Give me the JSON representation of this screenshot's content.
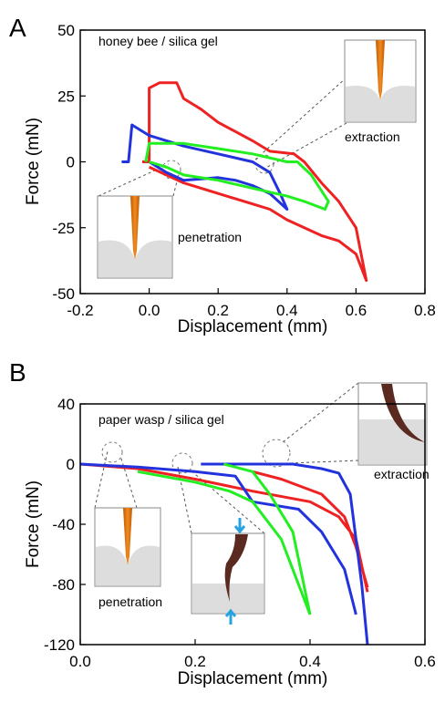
{
  "chart_data": [
    {
      "type": "line",
      "panel_label": "A",
      "title": "honey bee / silica gel",
      "x_label": "Displacement (mm)",
      "y_label": "Force (mN)",
      "annotations": [
        "penetration",
        "extraction"
      ],
      "xlim": [
        -0.2,
        0.8
      ],
      "ylim": [
        -50,
        50
      ],
      "xticks": [
        -0.2,
        {
          "value": 0,
          "label": "0.0"
        },
        0.2,
        0.4,
        0.6,
        0.8
      ],
      "yticks": [
        50,
        25,
        0,
        -25,
        -50
      ],
      "series": [
        {
          "color": "#ee2222",
          "x": [
            -0.02,
            0.0,
            0.0,
            0.03,
            0.08,
            0.1,
            0.15,
            0.2,
            0.3,
            0.35,
            0.42,
            0.45,
            0.5,
            0.55,
            0.6,
            0.63,
            0.6,
            0.55,
            0.5,
            0.45,
            0.4,
            0.35,
            0.3,
            0.2,
            0.1,
            0.05,
            0.0
          ],
          "values": [
            0,
            0,
            28,
            30,
            30,
            24,
            20,
            15,
            8,
            4,
            3,
            0,
            -8,
            -15,
            -25,
            -45,
            -35,
            -30,
            -28,
            -25,
            -22,
            -18,
            -16,
            -12,
            -8,
            -5,
            -2
          ]
        },
        {
          "color": "#2233dd",
          "x": [
            -0.08,
            -0.06,
            -0.05,
            0.0,
            0.1,
            0.2,
            0.3,
            0.35,
            0.38,
            0.4,
            0.35,
            0.3,
            0.25,
            0.2,
            0.1,
            0.05,
            0.0
          ],
          "values": [
            0,
            0,
            14,
            10,
            6,
            3,
            0,
            -4,
            -12,
            -18,
            -12,
            -9,
            -7,
            -6,
            -7,
            -4,
            0
          ]
        },
        {
          "color": "#22ee22",
          "x": [
            -0.01,
            0.0,
            0.1,
            0.2,
            0.3,
            0.4,
            0.43,
            0.47,
            0.52,
            0.51,
            0.45,
            0.4,
            0.3,
            0.2,
            0.1,
            0.05,
            0.0
          ],
          "values": [
            0,
            7,
            7,
            5,
            3,
            0,
            0,
            -5,
            -15,
            -18,
            -15,
            -13,
            -10,
            -7,
            -5,
            -2,
            0
          ]
        }
      ]
    },
    {
      "type": "line",
      "panel_label": "B",
      "title": "paper wasp / silica gel",
      "x_label": "Displacement (mm)",
      "y_label": "Force (mN)",
      "annotations": [
        "penetration",
        "extraction"
      ],
      "xlim": [
        0,
        0.6
      ],
      "ylim": [
        -120,
        40
      ],
      "xticks": [
        {
          "value": 0,
          "label": "0.0"
        },
        0.2,
        0.4,
        0.6
      ],
      "yticks": [
        40,
        0,
        -40,
        -80,
        -120
      ],
      "series": [
        {
          "color": "#ee2222",
          "x": [
            0.0,
            0.1,
            0.2,
            0.3,
            0.4,
            0.45,
            0.48,
            0.5,
            null,
            0.3,
            0.35,
            0.42,
            0.46,
            0.48,
            0.5
          ],
          "values": [
            0,
            -3,
            -10,
            -18,
            -25,
            -35,
            -50,
            -85,
            null,
            -5,
            -10,
            -20,
            -35,
            -55,
            -82
          ]
        },
        {
          "color": "#2233dd",
          "x": [
            0.0,
            0.1,
            0.2,
            0.27,
            0.3,
            0.38,
            0.42,
            0.46,
            0.48,
            null,
            0.21,
            0.37,
            0.42,
            0.45,
            0.47,
            0.48,
            0.49,
            0.5
          ],
          "values": [
            0,
            -2,
            -5,
            -8,
            -25,
            -30,
            -45,
            -70,
            -100,
            null,
            0,
            0,
            -3,
            -6,
            -20,
            -50,
            -80,
            -120
          ]
        },
        {
          "color": "#22ee22",
          "x": [
            0.1,
            0.2,
            0.26,
            0.3,
            0.35,
            0.4,
            null,
            0.25,
            0.3,
            0.33,
            0.37,
            0.4
          ],
          "values": [
            -5,
            -12,
            -18,
            -25,
            -50,
            -100,
            null,
            0,
            -5,
            -20,
            -45,
            -100
          ]
        }
      ]
    }
  ]
}
